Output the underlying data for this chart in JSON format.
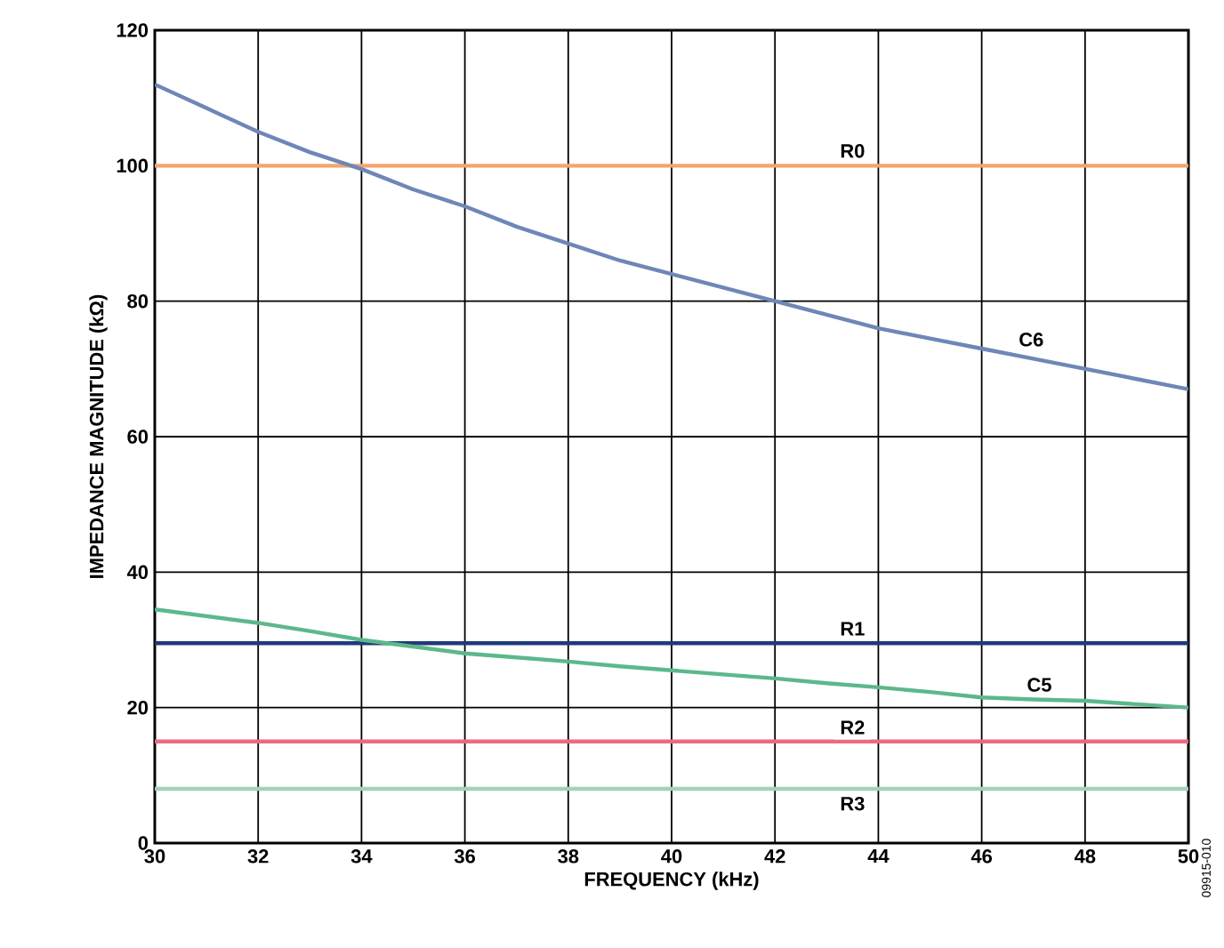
{
  "chart_data": {
    "type": "line",
    "xlabel": "FREQUENCY (kHz)",
    "ylabel": "IMPEDANCE MAGNITUDE (kΩ)",
    "xlim": [
      30,
      50
    ],
    "xticks": [
      30,
      32,
      34,
      36,
      38,
      40,
      42,
      44,
      46,
      48,
      50
    ],
    "ylim": [
      0,
      120
    ],
    "yticks": [
      0,
      20,
      40,
      60,
      80,
      100,
      120
    ],
    "grid": true,
    "marker": "none",
    "line_style": "solid",
    "annotations": [
      "09915-010"
    ],
    "series": [
      {
        "name": "R0",
        "color": "#f4a46c",
        "x": [
          30,
          50
        ],
        "values": [
          100,
          100
        ]
      },
      {
        "name": "C6",
        "color": "#6f86b8",
        "x": [
          30,
          31,
          32,
          33,
          34,
          35,
          36,
          37,
          38,
          39,
          40,
          41,
          42,
          43,
          44,
          45,
          46,
          47,
          48,
          49,
          50
        ],
        "values": [
          112,
          108.5,
          105,
          102,
          99.5,
          96.5,
          94,
          91,
          88.5,
          86,
          84,
          82,
          80,
          78,
          76,
          74.5,
          73,
          71.5,
          70,
          68.5,
          67
        ]
      },
      {
        "name": "R1",
        "color": "#1f3a7a",
        "x": [
          30,
          50
        ],
        "values": [
          29.5,
          29.5
        ]
      },
      {
        "name": "C5",
        "color": "#5cb88a",
        "x": [
          30,
          31,
          32,
          33,
          34,
          35,
          36,
          37,
          38,
          39,
          40,
          41,
          42,
          43,
          44,
          45,
          46,
          47,
          48,
          49,
          50
        ],
        "values": [
          34.5,
          33.5,
          32.5,
          31.3,
          30,
          29,
          28,
          27.4,
          26.8,
          26.1,
          25.5,
          24.9,
          24.3,
          23.6,
          23,
          22.3,
          21.5,
          21.2,
          21,
          20.5,
          20
        ]
      },
      {
        "name": "R2",
        "color": "#ec6a7e",
        "x": [
          30,
          50
        ],
        "values": [
          15,
          15
        ]
      },
      {
        "name": "R3",
        "color": "#9fd4b8",
        "x": [
          30,
          50
        ],
        "values": [
          8,
          8
        ]
      }
    ]
  }
}
